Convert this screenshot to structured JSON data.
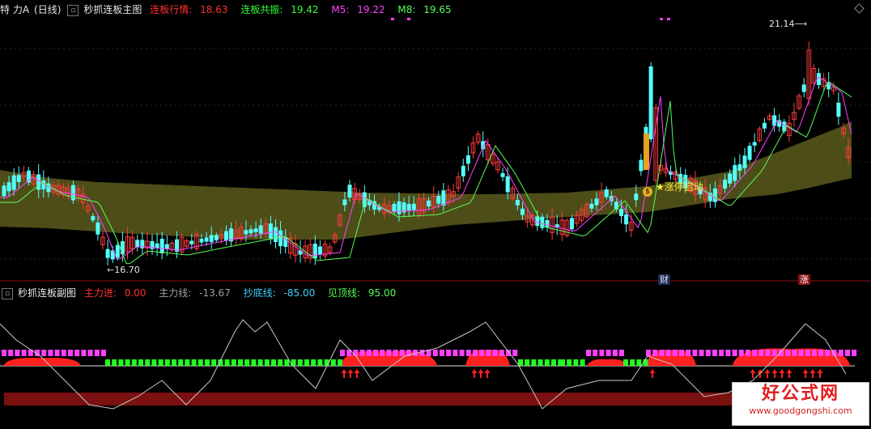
{
  "main_header": {
    "stock": "特 力A",
    "period": "(日线)",
    "indicator": "秒抓连板主图",
    "lb_label": "连板行情:",
    "lb_value": "18.63",
    "gz_label": "连板共振:",
    "gz_value": "19.42",
    "m5_label": "M5:",
    "m5_value": "19.22",
    "m8_label": "M8:",
    "m8_value": "19.65"
  },
  "sub_header": {
    "indicator": "秒抓连板副图",
    "zlj_label": "主力进:",
    "zlj_value": "0.00",
    "zlx_label": "主力线:",
    "zlx_value": "-13.67",
    "cdx_label": "抄底线:",
    "cdx_value": "-85.00",
    "jdx_label": "见顶线:",
    "jdx_value": "95.00"
  },
  "annotations": {
    "high_price": "21.14",
    "low_price": "16.70",
    "signal_text": "★涨停启动",
    "bag_icon_char": "$",
    "tag_cai": "财",
    "tag_zhang": "涨"
  },
  "watermark": {
    "main": "好公式网",
    "url": "www.goodgongshi.com"
  },
  "colors": {
    "up": "#ff3b3b",
    "down": "#54ffff",
    "band": "#5a5a1c",
    "ma5": "#ff40ff",
    "ma8": "#55ff55",
    "sub_magenta": "#ff40ff",
    "sub_green": "#22ff22",
    "sub_red": "#ff2020",
    "sub_darkred": "#7a1010"
  }
}
